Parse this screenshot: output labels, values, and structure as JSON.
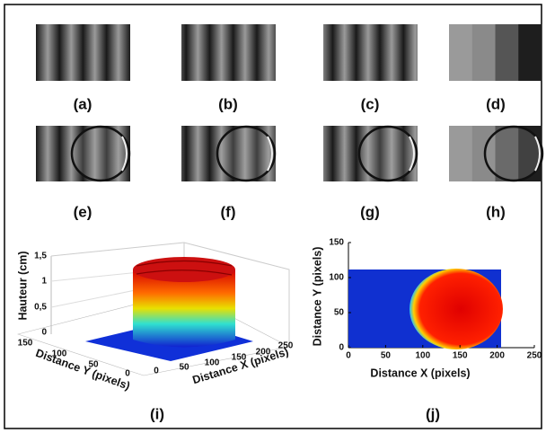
{
  "panels": [
    {
      "label": "(a)"
    },
    {
      "label": "(b)"
    },
    {
      "label": "(c)"
    },
    {
      "label": "(d)"
    },
    {
      "label": "(e)"
    },
    {
      "label": "(f)"
    },
    {
      "label": "(g)"
    },
    {
      "label": "(h)"
    }
  ],
  "plot_i": {
    "label": "(i)",
    "z_axis_title": "Hauteur (cm)",
    "z_ticks": [
      "1,5",
      1,
      "0,5",
      0
    ],
    "y_axis_title": "Distance Y (pixels)",
    "y_ticks": [
      150,
      100,
      50,
      0
    ],
    "x_axis_title": "Distance X (pixels)",
    "x_ticks": [
      0,
      50,
      100,
      150,
      200,
      250
    ]
  },
  "plot_j": {
    "label": "(j)",
    "y_axis_title": "Distance Y (pixels)",
    "x_axis_title": "Distance X (pixels)",
    "xlim": [
      0,
      250
    ],
    "ylim": [
      0,
      150
    ],
    "xticks": [
      0,
      50,
      100,
      150,
      200,
      250
    ],
    "yticks": [
      0,
      50,
      100,
      150
    ]
  }
}
